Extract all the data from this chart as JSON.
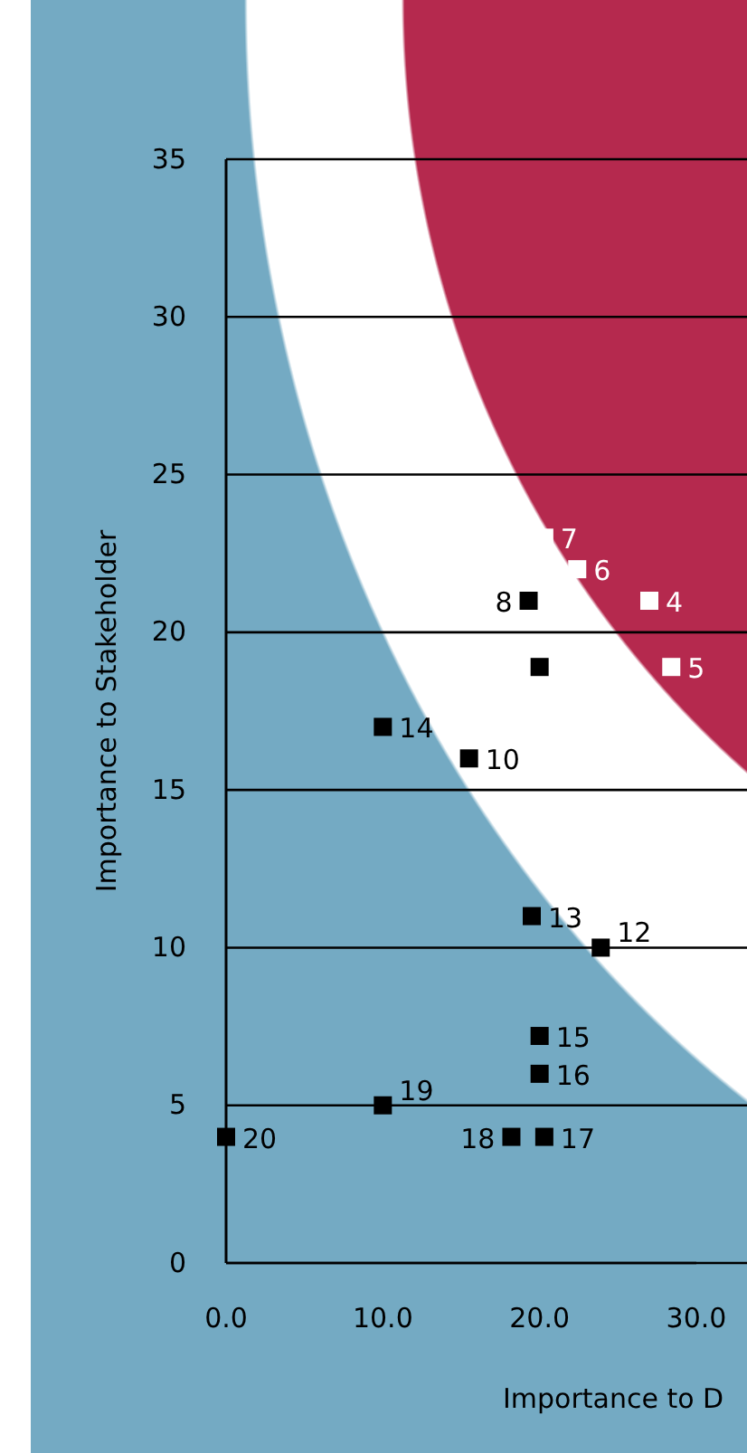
{
  "chart_data": {
    "type": "scatter",
    "xlabel": "Importance to D",
    "ylabel": "Importance to Stakeholder",
    "xlim": [
      0,
      30
    ],
    "ylim": [
      0,
      35
    ],
    "xticks": [
      {
        "value": 0,
        "label": "0.0"
      },
      {
        "value": 10,
        "label": "10.0"
      },
      {
        "value": 20,
        "label": "20.0"
      },
      {
        "value": 30,
        "label": "30.0"
      }
    ],
    "yticks": [
      0,
      5,
      10,
      15,
      20,
      25,
      30,
      35
    ],
    "grid": "y",
    "marker": "square",
    "series": [
      {
        "color": "#ffffff",
        "x": [
          20.3,
          22.4,
          27.0,
          28.4
        ],
        "values": [
          23,
          22,
          21,
          18.9
        ]
      },
      {
        "color": "#000000",
        "x": [
          19.3,
          20.0,
          10.0,
          15.5,
          19.5,
          23.9,
          20.0,
          20.0,
          10.0,
          0,
          18.2,
          20.3
        ],
        "values": [
          21,
          18.9,
          17,
          16,
          11,
          10,
          7.2,
          6,
          5,
          4,
          4,
          4
        ]
      }
    ],
    "annotations": [
      {
        "text": "7",
        "x": 20.3,
        "y": 23
      },
      {
        "text": "6",
        "x": 22.4,
        "y": 22
      },
      {
        "text": "4",
        "x": 27.0,
        "y": 21
      },
      {
        "text": "5",
        "x": 28.4,
        "y": 18.9
      },
      {
        "text": "8",
        "x": 19.3,
        "y": 21
      },
      {
        "text": "14",
        "x": 10.0,
        "y": 17
      },
      {
        "text": "10",
        "x": 15.5,
        "y": 16
      },
      {
        "text": "13",
        "x": 19.5,
        "y": 11
      },
      {
        "text": "12",
        "x": 23.9,
        "y": 10
      },
      {
        "text": "15",
        "x": 20.0,
        "y": 7.2
      },
      {
        "text": "16",
        "x": 20.0,
        "y": 6
      },
      {
        "text": "19",
        "x": 10.0,
        "y": 5
      },
      {
        "text": "20",
        "x": 0,
        "y": 4
      },
      {
        "text": "18",
        "x": 18.2,
        "y": 4
      },
      {
        "text": "17",
        "x": 20.3,
        "y": 4
      }
    ]
  }
}
